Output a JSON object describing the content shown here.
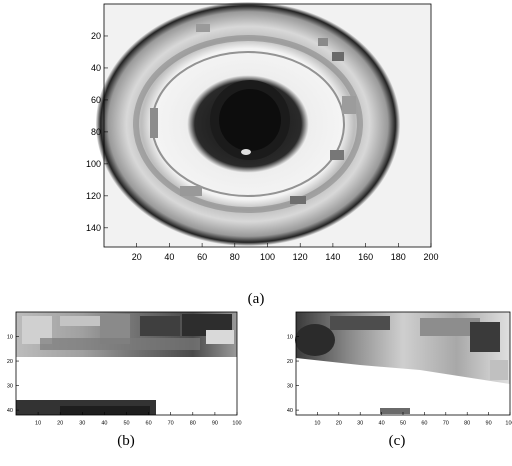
{
  "panels": [
    {
      "caption": "(a)",
      "x_ticks": [
        "20",
        "40",
        "60",
        "80",
        "100",
        "120",
        "140",
        "160",
        "180",
        "200"
      ],
      "y_ticks": [
        "20",
        "40",
        "60",
        "80",
        "100",
        "120",
        "140"
      ],
      "xlim": [
        0,
        200
      ],
      "ylim": [
        0,
        152
      ],
      "image_content": "omnidirectional grayscale camera image"
    },
    {
      "caption": "(b)",
      "x_ticks": [
        "10",
        "20",
        "30",
        "40",
        "50",
        "60",
        "70",
        "80",
        "90",
        "100"
      ],
      "y_ticks": [
        "10",
        "20",
        "30",
        "40"
      ],
      "xlim": [
        0,
        100
      ],
      "ylim": [
        0,
        42
      ],
      "image_content": "unwrapped panoramic grayscale strip"
    },
    {
      "caption": "(c)",
      "x_ticks": [
        "10",
        "20",
        "30",
        "40",
        "50",
        "60",
        "70",
        "80",
        "90",
        "100"
      ],
      "y_ticks": [
        "10",
        "20",
        "30",
        "40"
      ],
      "xlim": [
        0,
        100
      ],
      "ylim": [
        0,
        42
      ],
      "image_content": "unwrapped panoramic grayscale strip"
    }
  ]
}
